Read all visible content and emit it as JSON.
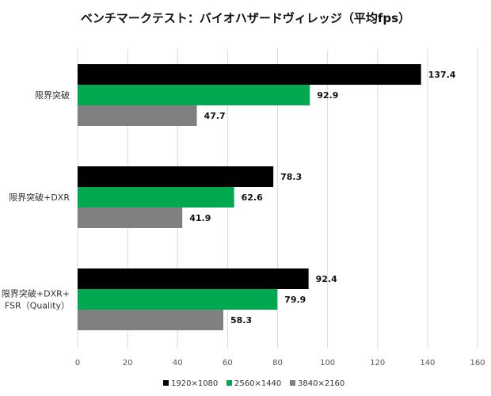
{
  "chart_data": {
    "type": "bar",
    "orientation": "horizontal",
    "title": "ベンチマークテスト：バイオハザードヴィレッジ（平均fps）",
    "categories": [
      [
        "限界突破"
      ],
      [
        "限界突破+DXR"
      ],
      [
        "限界突破+DXR+",
        "FSR（Quality）"
      ]
    ],
    "series": [
      {
        "name": "1920×1080",
        "color": "#000000",
        "values": [
          137.4,
          78.3,
          92.4
        ]
      },
      {
        "name": "2560×1440",
        "color": "#00a850",
        "values": [
          92.9,
          62.6,
          79.9
        ]
      },
      {
        "name": "3840×2160",
        "color": "#808080",
        "values": [
          47.7,
          41.9,
          58.3
        ]
      }
    ],
    "xlim": [
      0,
      160
    ],
    "xticks": [
      0,
      20,
      40,
      60,
      80,
      100,
      120,
      140,
      160
    ],
    "grid": true,
    "legend_position": "bottom"
  }
}
